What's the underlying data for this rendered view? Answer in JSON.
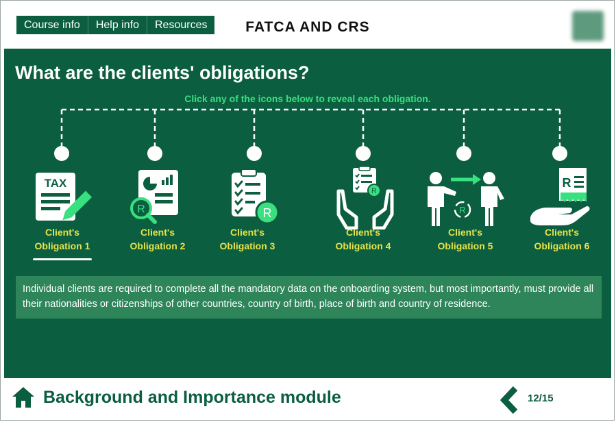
{
  "header": {
    "nav": [
      "Course info",
      "Help info",
      "Resources"
    ],
    "title": "FATCA AND CRS"
  },
  "main": {
    "heading": "What are the clients' obligations?",
    "instruction": "Click any of the icons below to reveal each obligation.",
    "obligations": [
      {
        "line1": "Client's",
        "line2": "Obligation 1",
        "icon": "tax-form-pencil-icon",
        "selected": true
      },
      {
        "line1": "Client's",
        "line2": "Obligation 2",
        "icon": "document-chart-magnifier-icon",
        "selected": false
      },
      {
        "line1": "Client's",
        "line2": "Obligation 3",
        "icon": "checklist-clipboard-icon",
        "selected": false
      },
      {
        "line1": "Client's",
        "line2": "Obligation 4",
        "icon": "hands-holding-clipboard-icon",
        "selected": false
      },
      {
        "line1": "Client's",
        "line2": "Obligation 5",
        "icon": "people-exchange-icon",
        "selected": false
      },
      {
        "line1": "Client's",
        "line2": "Obligation 6",
        "icon": "hand-receipt-icon",
        "selected": false
      }
    ],
    "description": "Individual clients are required to complete all the mandatory data on the onboarding system, but most importantly, must provide all their nationalities or citizenships of other countries, country of birth, place of birth and country of residence."
  },
  "footer": {
    "module_title": "Background and Importance module",
    "page": "12/15"
  },
  "colors": {
    "brand_green": "#0b5e3f",
    "accent_green": "#39e07f",
    "label_yellow": "#e6e34a",
    "description_bg": "#2e8559"
  }
}
